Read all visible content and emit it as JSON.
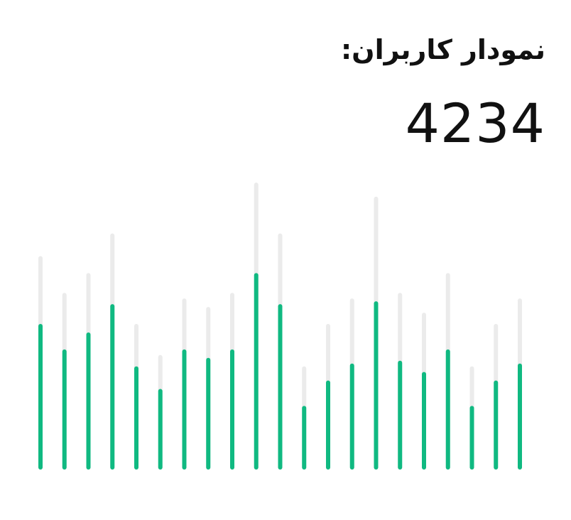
{
  "title": "نمودار کاربران:",
  "total": "4234",
  "colors": {
    "track": "#ebebeb",
    "bar": "#10b981",
    "text": "#111111"
  },
  "chart_data": {
    "type": "bar",
    "grid": false,
    "legend": "none",
    "ylim": [
      0,
      100
    ],
    "series": [
      {
        "values": [
          50,
          41,
          47,
          57,
          35,
          27,
          41,
          38,
          41,
          68,
          57,
          21,
          30,
          36,
          58,
          37,
          33,
          41,
          21,
          30,
          36
        ]
      },
      {
        "values": [
          74,
          61,
          68,
          82,
          50,
          39,
          59,
          56,
          61,
          100,
          82,
          35,
          50,
          59,
          95,
          61,
          54,
          68,
          35,
          50,
          59
        ]
      }
    ]
  }
}
